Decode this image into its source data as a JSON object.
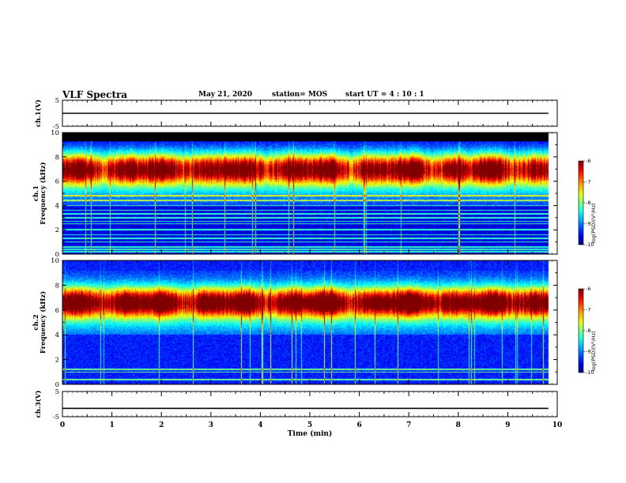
{
  "header": {
    "title": "VLF Spectra",
    "date": "May 21, 2020",
    "station": "station= MOS",
    "start": "start  UT =   4 : 10 : 1"
  },
  "chart_data": [
    {
      "type": "line",
      "panel": "ch1_voltage",
      "ylabel": "ch.1(V)",
      "ylim": [
        -5,
        5
      ],
      "yticks": [
        "5",
        "-5"
      ],
      "series": [
        {
          "x": [
            0,
            9.82
          ],
          "values": [
            0,
            0
          ]
        }
      ]
    },
    {
      "type": "heatmap",
      "panel": "ch1_spectrogram",
      "ylabel": "Frequency (kHz)",
      "channel_label": "ch.1",
      "ylim": [
        0,
        10
      ],
      "yticks": [
        "0",
        "2",
        "4",
        "6",
        "8",
        "10"
      ],
      "data_xrange": [
        0,
        9.82
      ],
      "background_above_khz": 9.3,
      "band_center_khz": 7.0,
      "band_halfwidth_khz": 1.2,
      "floor_log": -9.6,
      "harmonic_lines_khz": [
        0.2,
        0.4,
        0.6,
        1.0,
        1.3,
        1.6,
        2.0,
        2.5,
        2.7,
        3.0,
        3.3,
        3.6,
        4.0,
        4.4,
        4.8
      ],
      "colorbar": {
        "label": "log(PSD)(V²/Hz)",
        "range": [
          -10,
          -6
        ],
        "ticks": [
          "-6",
          "-7",
          "-8",
          "-9",
          "-10"
        ]
      }
    },
    {
      "type": "heatmap",
      "panel": "ch2_spectrogram",
      "ylabel": "Frequency (kHz)",
      "channel_label": "ch.2",
      "ylim": [
        0,
        10
      ],
      "yticks": [
        "0",
        "2",
        "4",
        "6",
        "8",
        "10"
      ],
      "data_xrange": [
        0,
        9.82
      ],
      "band_center_khz": 6.6,
      "band_halfwidth_khz": 1.1,
      "floor_log": -9.4,
      "harmonic_lines_khz": [
        0.4,
        1.0,
        1.2
      ],
      "colorbar": {
        "label": "log(PSD)(V²/Hz)",
        "range": [
          -10,
          -6
        ],
        "ticks": [
          "-6",
          "-7",
          "-8",
          "-9",
          "-10"
        ]
      }
    },
    {
      "type": "line",
      "panel": "ch3_voltage",
      "ylabel": "ch.3(V)",
      "ylim": [
        -5,
        5
      ],
      "yticks": [
        "5",
        "-5"
      ],
      "series": [
        {
          "x": [
            0,
            9.82
          ],
          "values": [
            -1.7,
            -1.7
          ]
        }
      ]
    }
  ],
  "xaxis": {
    "label": "Time  (min)",
    "range": [
      0,
      10
    ],
    "ticks": [
      "0",
      "1",
      "2",
      "3",
      "4",
      "5",
      "6",
      "7",
      "8",
      "9",
      "10"
    ]
  }
}
